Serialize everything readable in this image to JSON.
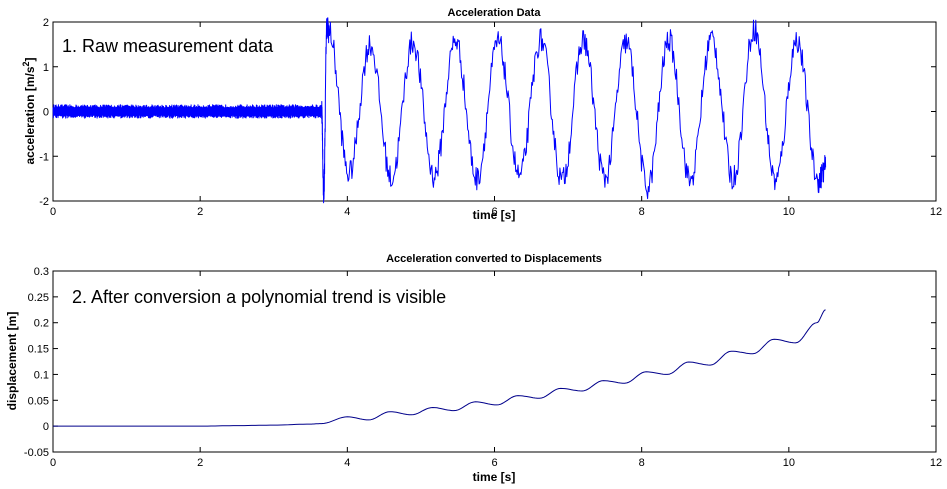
{
  "chart_data": [
    {
      "type": "line",
      "title": "Acceleration Data",
      "xlabel": "time [s]",
      "ylabel": "acceleration [m/s",
      "ylabel_sup": "2",
      "ylabel_end": "]",
      "xlim": [
        0,
        12
      ],
      "ylim": [
        -2,
        2
      ],
      "x_ticks": [
        0,
        2,
        4,
        6,
        8,
        10,
        12
      ],
      "y_ticks": [
        -2,
        -1,
        0,
        1,
        2
      ],
      "x_tick_labels": [
        "0",
        "2",
        "4",
        "6",
        "8",
        "10",
        "12"
      ],
      "y_tick_labels": [
        "-2",
        "-1",
        "0",
        "1",
        "2"
      ],
      "annotation": "1. Raw measurement data",
      "grid": false,
      "line_color": "#0000ff",
      "series": [
        {
          "segments": [
            {
              "x_range": [
                0.0,
                3.65
              ],
              "kind": "noise",
              "amplitude": 0.15
            },
            {
              "x_range": [
                3.65,
                10.5
              ],
              "kind": "oscillation",
              "period": 0.58,
              "peak": 1.6,
              "trough": -1.5
            }
          ],
          "x": [
            0.0,
            3.65,
            3.68,
            3.72,
            3.75,
            4.02,
            4.31,
            4.6,
            4.89,
            5.18,
            5.47,
            5.76,
            6.05,
            6.34,
            6.63,
            6.92,
            7.21,
            7.5,
            7.79,
            8.08,
            8.37,
            8.66,
            8.95,
            9.24,
            9.53,
            9.82,
            10.11,
            10.4,
            10.5
          ],
          "y": [
            0.0,
            0.1,
            -1.85,
            1.9,
            1.8,
            -1.4,
            1.5,
            -1.5,
            1.55,
            -1.45,
            1.6,
            -1.5,
            1.55,
            -1.45,
            1.6,
            -1.55,
            1.6,
            -1.5,
            1.55,
            -1.7,
            1.6,
            -1.55,
            1.65,
            -1.5,
            1.85,
            -1.55,
            1.6,
            -1.55,
            -1.25
          ]
        }
      ]
    },
    {
      "type": "line",
      "title": "Acceleration converted to Displacements",
      "xlabel": "time [s]",
      "ylabel": "displacement [m]",
      "xlim": [
        0,
        12
      ],
      "ylim": [
        -0.05,
        0.3
      ],
      "x_ticks": [
        0,
        2,
        4,
        6,
        8,
        10,
        12
      ],
      "y_ticks": [
        -0.05,
        0,
        0.05,
        0.1,
        0.15,
        0.2,
        0.25,
        0.3
      ],
      "x_tick_labels": [
        "0",
        "2",
        "4",
        "6",
        "8",
        "10",
        "12"
      ],
      "y_tick_labels": [
        "-0.05",
        "0",
        "0.05",
        "0.1",
        "0.15",
        "0.2",
        "0.25",
        "0.3"
      ],
      "annotation": "2. After conversion a polynomial trend is visible",
      "grid": false,
      "line_color": "#00008b",
      "series": [
        {
          "x": [
            0,
            1,
            2,
            2.5,
            3,
            3.5,
            3.65,
            4.0,
            4.29,
            4.58,
            4.87,
            5.16,
            5.45,
            5.74,
            6.03,
            6.32,
            6.61,
            6.9,
            7.19,
            7.48,
            7.77,
            8.06,
            8.35,
            8.64,
            8.93,
            9.22,
            9.51,
            9.8,
            10.09,
            10.38,
            10.5
          ],
          "y": [
            0,
            0,
            0,
            0.001,
            0.002,
            0.004,
            0.005,
            0.018,
            0.012,
            0.028,
            0.022,
            0.036,
            0.03,
            0.047,
            0.041,
            0.059,
            0.054,
            0.073,
            0.068,
            0.088,
            0.083,
            0.105,
            0.1,
            0.124,
            0.118,
            0.145,
            0.14,
            0.168,
            0.161,
            0.2,
            0.225
          ]
        }
      ]
    }
  ]
}
